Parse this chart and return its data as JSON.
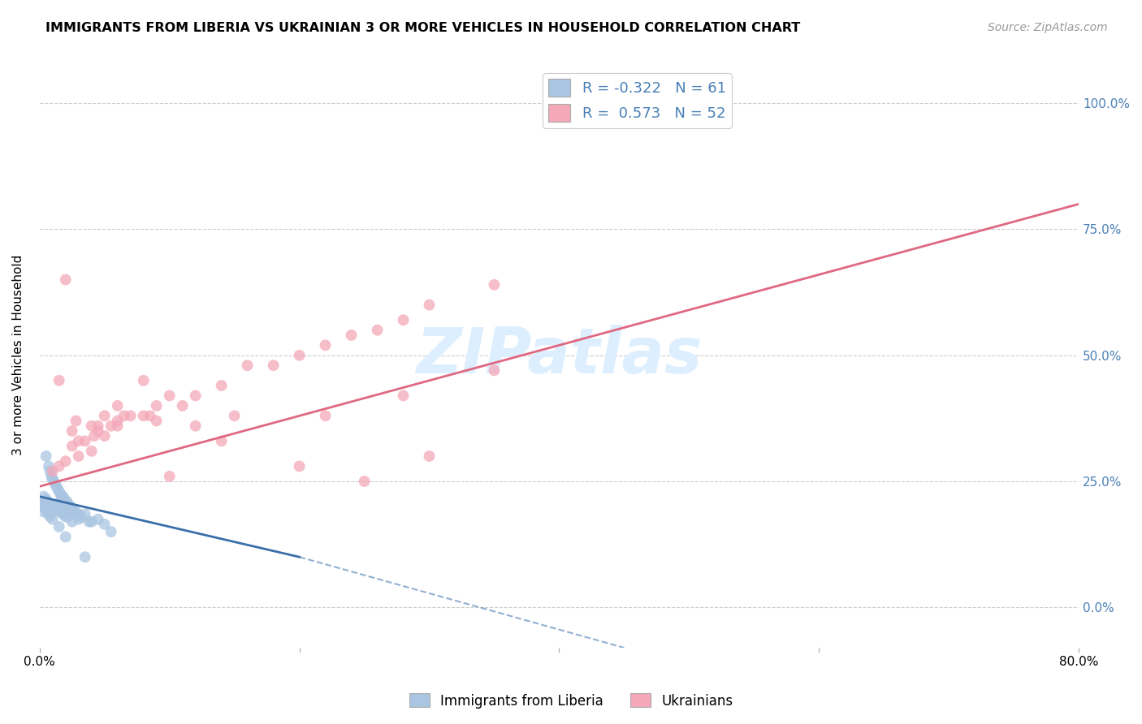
{
  "title": "IMMIGRANTS FROM LIBERIA VS UKRAINIAN 3 OR MORE VEHICLES IN HOUSEHOLD CORRELATION CHART",
  "source": "Source: ZipAtlas.com",
  "ylabel": "3 or more Vehicles in Household",
  "ytick_values": [
    0,
    25,
    50,
    75,
    100
  ],
  "xtick_values": [
    0,
    20,
    40,
    60,
    80
  ],
  "xlim": [
    0,
    80
  ],
  "ylim": [
    -8,
    108
  ],
  "legend_label1": "Immigrants from Liberia",
  "legend_label2": "Ukrainians",
  "R1": "-0.322",
  "N1": "61",
  "R2": "0.573",
  "N2": "52",
  "color_blue": "#aac5e2",
  "color_pink": "#f4a8b8",
  "color_blue_line": "#3a6fa8",
  "color_pink_line": "#e06880",
  "color_blue_text": "#4a80b8",
  "watermark": "ZIPatlas",
  "watermark_color": "#ddeeff",
  "liberia_x": [
    0.5,
    0.7,
    0.8,
    0.9,
    1.0,
    1.1,
    1.2,
    1.3,
    1.4,
    1.5,
    1.6,
    1.7,
    1.8,
    1.9,
    2.0,
    2.1,
    2.2,
    2.3,
    2.4,
    2.5,
    2.6,
    2.8,
    3.0,
    3.2,
    3.5,
    3.8,
    4.0,
    4.5,
    5.0,
    5.5,
    0.3,
    0.4,
    0.5,
    0.6,
    0.7,
    0.8,
    0.9,
    1.0,
    1.1,
    1.2,
    1.3,
    1.4,
    1.5,
    1.6,
    1.7,
    1.8,
    2.0,
    2.2,
    2.5,
    3.0,
    0.2,
    0.3,
    0.4,
    0.5,
    0.6,
    0.7,
    0.8,
    1.0,
    1.5,
    2.0,
    3.5
  ],
  "liberia_y": [
    30.0,
    28.0,
    27.0,
    26.0,
    25.5,
    25.0,
    24.5,
    24.0,
    23.5,
    23.0,
    22.5,
    22.0,
    22.0,
    21.5,
    21.0,
    21.0,
    20.5,
    20.0,
    20.0,
    19.5,
    19.0,
    19.0,
    18.5,
    18.0,
    18.5,
    17.0,
    17.0,
    17.5,
    16.5,
    15.0,
    22.0,
    21.0,
    21.5,
    21.0,
    20.5,
    20.0,
    20.0,
    19.5,
    19.0,
    19.5,
    20.0,
    20.5,
    19.5,
    19.0,
    19.0,
    18.5,
    18.0,
    18.0,
    17.0,
    17.5,
    20.0,
    19.0,
    20.0,
    19.5,
    19.0,
    18.5,
    18.0,
    17.5,
    16.0,
    14.0,
    10.0
  ],
  "ukrainian_x": [
    1.0,
    1.5,
    2.0,
    2.5,
    3.0,
    3.5,
    4.0,
    4.5,
    5.0,
    5.5,
    6.0,
    7.0,
    8.0,
    9.0,
    10.0,
    11.0,
    12.0,
    14.0,
    16.0,
    18.0,
    20.0,
    22.0,
    24.0,
    26.0,
    28.0,
    30.0,
    35.0,
    2.0,
    3.0,
    4.0,
    5.0,
    6.0,
    8.0,
    10.0,
    12.0,
    2.5,
    4.5,
    6.5,
    8.5,
    14.0,
    20.0,
    25.0,
    30.0,
    1.5,
    2.8,
    4.2,
    6.0,
    9.0,
    15.0,
    22.0,
    28.0,
    35.0
  ],
  "ukrainian_y": [
    27.0,
    28.0,
    29.0,
    32.0,
    30.0,
    33.0,
    31.0,
    35.0,
    34.0,
    36.0,
    37.0,
    38.0,
    38.0,
    40.0,
    42.0,
    40.0,
    42.0,
    44.0,
    48.0,
    48.0,
    50.0,
    52.0,
    54.0,
    55.0,
    57.0,
    60.0,
    64.0,
    65.0,
    33.0,
    36.0,
    38.0,
    40.0,
    45.0,
    26.0,
    36.0,
    35.0,
    36.0,
    38.0,
    38.0,
    33.0,
    28.0,
    25.0,
    30.0,
    45.0,
    37.0,
    34.0,
    36.0,
    37.0,
    38.0,
    38.0,
    42.0,
    47.0
  ],
  "pink_line_x0": 0,
  "pink_line_y0": 24.0,
  "pink_line_x1": 80,
  "pink_line_y1": 80.0,
  "blue_line_x0": 0,
  "blue_line_y0": 22.0,
  "blue_line_x1": 20,
  "blue_line_y1": 10.0,
  "blue_dash_x1": 45,
  "blue_dash_y1": -8.0
}
